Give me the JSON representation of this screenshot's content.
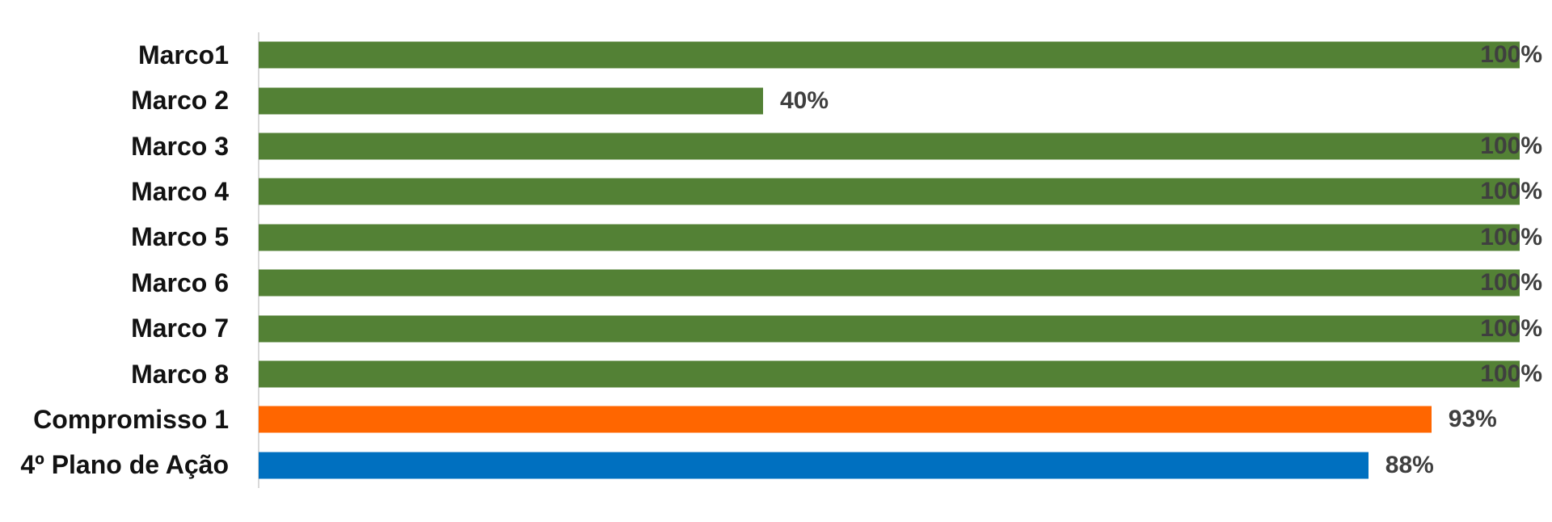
{
  "chart_data": {
    "type": "bar",
    "orientation": "horizontal",
    "title": "",
    "xlabel": "",
    "ylabel": "",
    "xlim": [
      0,
      100
    ],
    "grid": false,
    "legend": false,
    "categories": [
      "Marco1",
      "Marco 2",
      "Marco 3",
      "Marco 4",
      "Marco 5",
      "Marco 6",
      "Marco 7",
      "Marco 8",
      "Compromisso 1",
      "4º Plano de Ação"
    ],
    "values": [
      100,
      40,
      100,
      100,
      100,
      100,
      100,
      100,
      93,
      88
    ],
    "value_labels": [
      "100%",
      "40%",
      "100%",
      "100%",
      "100%",
      "100%",
      "100%",
      "100%",
      "93%",
      "88%"
    ],
    "bar_colors": [
      "#538135",
      "#538135",
      "#538135",
      "#538135",
      "#538135",
      "#538135",
      "#538135",
      "#538135",
      "#FF6600",
      "#0070C0"
    ],
    "colors": {
      "green_series": "#538135",
      "orange_series": "#FF6600",
      "blue_series": "#0070C0",
      "axis_line": "#d9d9d9",
      "category_label": "#121212",
      "value_label": "#3F3F3F"
    }
  }
}
